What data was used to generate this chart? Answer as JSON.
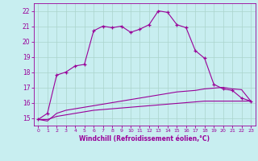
{
  "xlabel": "Windchill (Refroidissement éolien,°C)",
  "xlim": [
    -0.5,
    23.5
  ],
  "ylim": [
    14.5,
    22.5
  ],
  "yticks": [
    15,
    16,
    17,
    18,
    19,
    20,
    21,
    22
  ],
  "xticks": [
    0,
    1,
    2,
    3,
    4,
    5,
    6,
    7,
    8,
    9,
    10,
    11,
    12,
    13,
    14,
    15,
    16,
    17,
    18,
    19,
    20,
    21,
    22,
    23
  ],
  "bg_color": "#c8eef0",
  "grid_color": "#aad4cc",
  "line_color": "#990099",
  "line1": [
    14.9,
    15.3,
    17.8,
    18.0,
    18.4,
    18.5,
    20.7,
    21.0,
    20.9,
    21.0,
    20.6,
    20.8,
    21.1,
    22.0,
    21.9,
    21.1,
    20.9,
    19.4,
    18.9,
    17.2,
    16.9,
    16.8,
    16.3,
    16.1
  ],
  "line2": [
    14.9,
    14.8,
    15.3,
    15.5,
    15.6,
    15.7,
    15.8,
    15.9,
    16.0,
    16.1,
    16.2,
    16.3,
    16.4,
    16.5,
    16.6,
    16.7,
    16.75,
    16.8,
    16.9,
    16.95,
    17.0,
    16.9,
    16.85,
    16.1
  ],
  "line3": [
    14.9,
    14.9,
    15.1,
    15.2,
    15.3,
    15.4,
    15.5,
    15.55,
    15.6,
    15.65,
    15.7,
    15.75,
    15.8,
    15.85,
    15.9,
    15.95,
    16.0,
    16.05,
    16.1,
    16.1,
    16.1,
    16.1,
    16.1,
    16.1
  ]
}
